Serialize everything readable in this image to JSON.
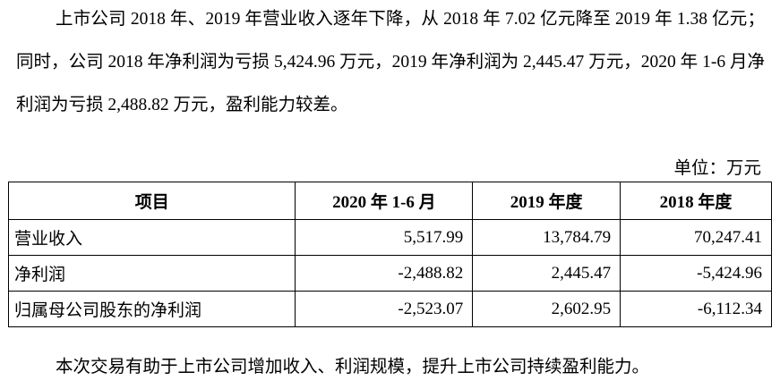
{
  "intro": "上市公司 2018 年、2019 年营业收入逐年下降，从 2018 年 7.02 亿元降至 2019 年 1.38 亿元；同时，公司 2018 年净利润为亏损 5,424.96 万元，2019 年净利润为 2,445.47 万元，2020 年 1-6 月净利润为亏损 2,488.82 万元，盈利能力较差。",
  "unit": "单位：万元",
  "table": {
    "header": [
      "项目",
      "2020 年 1-6 月",
      "2019 年度",
      "2018 年度"
    ],
    "rows": [
      [
        "营业收入",
        "5,517.99",
        "13,784.79",
        "70,247.41"
      ],
      [
        "净利润",
        "-2,488.82",
        "2,445.47",
        "-5,424.96"
      ],
      [
        "归属母公司股东的净利润",
        "-2,523.07",
        "2,602.95",
        "-6,112.34"
      ]
    ]
  },
  "closing": "本次交易有助于上市公司增加收入、利润规模，提升上市公司持续盈利能力。"
}
